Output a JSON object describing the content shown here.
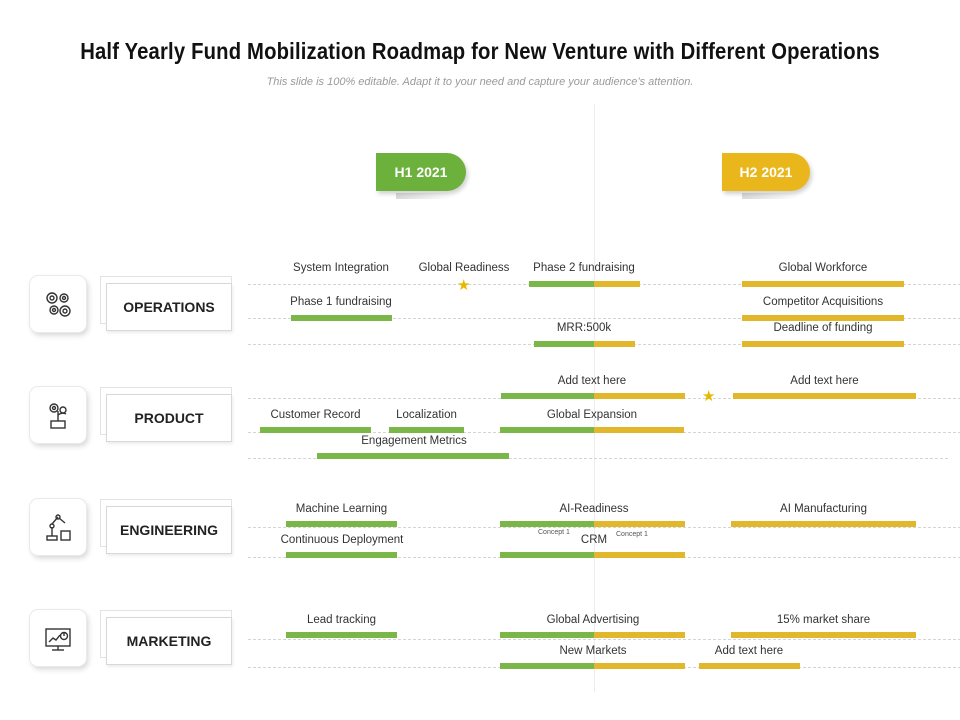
{
  "title": "Half Yearly Fund Mobilization Roadmap for New Venture with Different Operations",
  "subtitle": "This slide is 100% editable. Adapt it to your need and capture your audience’s attention.",
  "halves": {
    "h1": "H1 2021",
    "h2": "H2 2021"
  },
  "colors": {
    "green": "#7ab648",
    "yellow": "#e3b72c",
    "tag_green": "#6bb13c",
    "tag_yellow": "#e9b71c"
  },
  "sections": {
    "operations": {
      "label": "OPERATIONS",
      "icon": "gears-icon"
    },
    "product": {
      "label": "PRODUCT",
      "icon": "plant-gear-icon"
    },
    "engineering": {
      "label": "ENGINEERING",
      "icon": "robot-arm-icon"
    },
    "marketing": {
      "label": "MARKETING",
      "icon": "analytics-monitor-icon"
    }
  },
  "items": {
    "system_integration": "System Integration",
    "global_readiness": "Global Readiness",
    "phase2": "Phase 2 fundraising",
    "global_workforce": "Global Workforce",
    "phase1": "Phase 1 fundraising",
    "competitor_acq": "Competitor Acquisitions",
    "mrr": "MRR:500k",
    "deadline": "Deadline of funding",
    "add_text_1": "Add text here",
    "add_text_2": "Add text here",
    "customer_record": "Customer Record",
    "localization": "Localization",
    "global_expansion": "Global Expansion",
    "engagement_metrics": "Engagement Metrics",
    "machine_learning": "Machine Learning",
    "ai_readiness": "AI-Readiness",
    "ai_manufacturing": "AI Manufacturing",
    "continuous_deployment": "Continuous Deployment",
    "concept1_left": "Concept 1",
    "concept1_right": "Concept 1",
    "crm": "CRM",
    "lead_tracking": "Lead tracking",
    "global_advertising": "Global Advertising",
    "market_share": "15% market share",
    "new_markets": "New Markets",
    "add_text_3": "Add text here"
  }
}
